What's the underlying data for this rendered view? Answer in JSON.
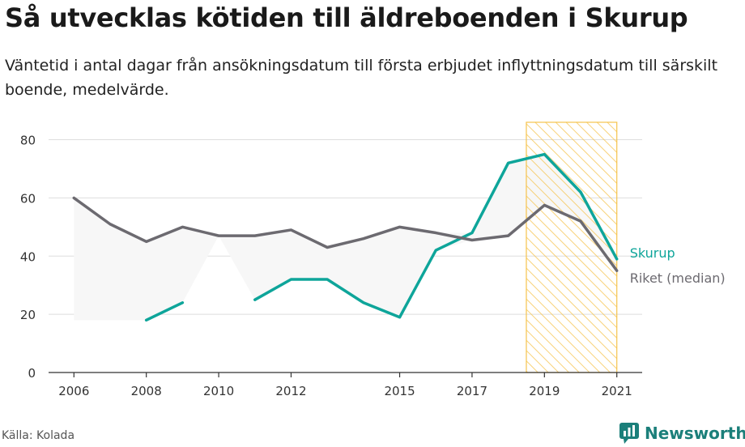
{
  "title": "Så utvecklas kötiden till äldreboenden i Skurup",
  "subtitle": "Väntetid i antal dagar från ansökningsdatum till första erbjudet inflyttningsdatum till särskilt boende, medelvärde.",
  "source": "Källa: Kolada",
  "brand": {
    "name": "Newsworthy",
    "icon": "newsworthy-logo-icon"
  },
  "colors": {
    "skurup": "#0ea59a",
    "riket": "#6c6a70",
    "band": "#f7f7f7",
    "highlight": "#f5c34c",
    "grid": "#dddddd"
  },
  "chart_data": {
    "type": "line",
    "x": [
      2006,
      2007,
      2008,
      2009,
      2010,
      2011,
      2012,
      2013,
      2014,
      2015,
      2016,
      2017,
      2018,
      2019,
      2020,
      2021
    ],
    "x_ticks": [
      2006,
      2008,
      2010,
      2012,
      2015,
      2017,
      2019,
      2021
    ],
    "y_ticks": [
      0,
      20,
      40,
      60,
      80
    ],
    "ylim": [
      0,
      86
    ],
    "xlim": [
      2005.3,
      2021.7
    ],
    "grid": true,
    "highlight_range": [
      2018.5,
      2021
    ],
    "series": [
      {
        "name": "Skurup",
        "color": "#0ea59a",
        "values": [
          null,
          null,
          18,
          24,
          null,
          25,
          32,
          32,
          24,
          19,
          42,
          48,
          72,
          75,
          62,
          39
        ]
      },
      {
        "name": "Riket (median)",
        "color": "#6c6a70",
        "values": [
          60,
          51,
          45,
          50,
          47,
          47,
          49,
          43,
          46,
          50,
          48,
          45.5,
          47,
          57.5,
          52,
          35
        ]
      }
    ]
  }
}
